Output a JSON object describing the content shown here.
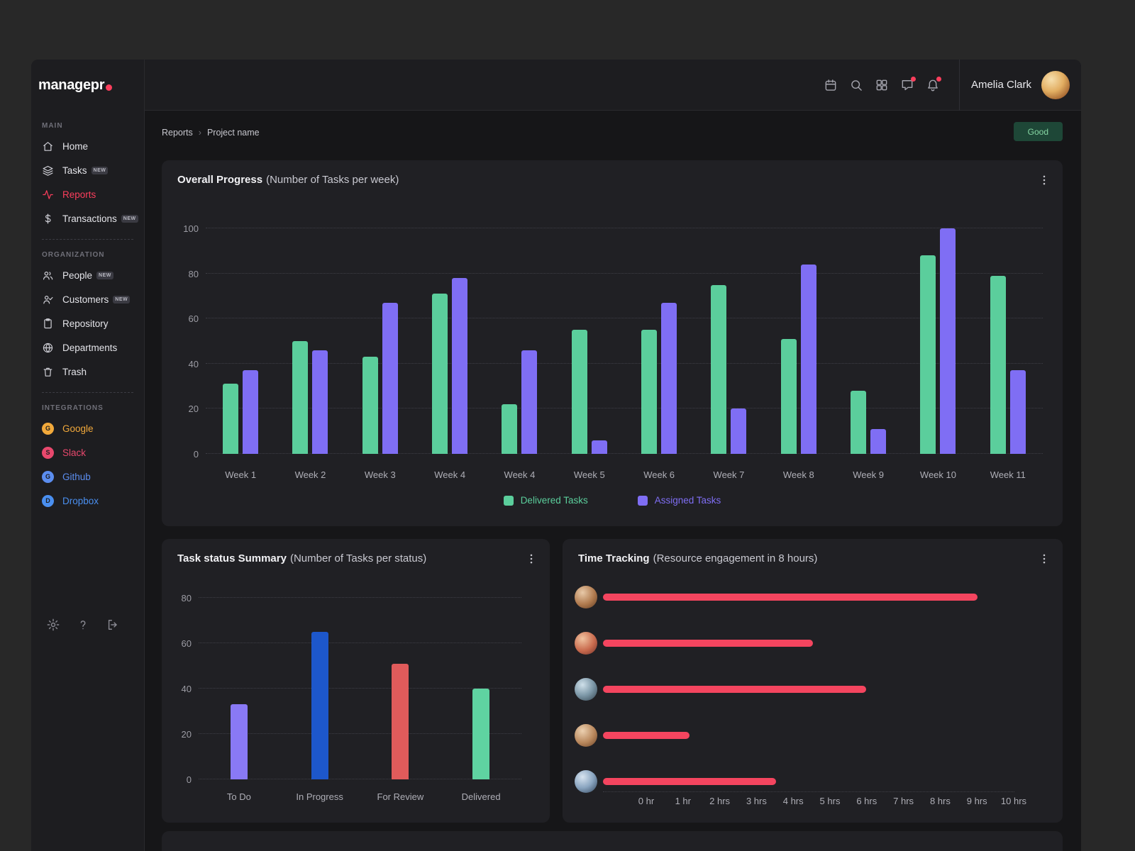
{
  "brand": {
    "logo_text": "managepr",
    "accent": "#FB3E5C"
  },
  "header": {
    "user_name": "Amelia Clark",
    "icons": [
      "calendar-icon",
      "search-icon",
      "grid-icon",
      "chat-icon",
      "bell-icon"
    ],
    "notification_dots_on": [
      "chat-icon",
      "bell-icon"
    ]
  },
  "breadcrumb": {
    "path": [
      "Reports",
      "Project name"
    ],
    "separator": "›"
  },
  "status_button": {
    "label": "Good",
    "bg": "#1E4737",
    "color": "#86D6A3"
  },
  "sidebar": {
    "sections": [
      {
        "title": "MAIN",
        "items": [
          {
            "label": "Home",
            "icon": "home-icon"
          },
          {
            "label": "Tasks",
            "icon": "layers-icon",
            "badge": "NEW"
          },
          {
            "label": "Reports",
            "icon": "activity-icon",
            "active": true
          },
          {
            "label": "Transactions",
            "icon": "dollar-icon",
            "badge": "NEW"
          }
        ]
      },
      {
        "title": "ORGANIZATION",
        "items": [
          {
            "label": "People",
            "icon": "users-icon",
            "badge": "NEW"
          },
          {
            "label": "Customers",
            "icon": "user-check-icon",
            "badge": "NEW"
          },
          {
            "label": "Repository",
            "icon": "clipboard-icon"
          },
          {
            "label": "Departments",
            "icon": "globe-icon"
          },
          {
            "label": "Trash",
            "icon": "trash-icon"
          }
        ]
      },
      {
        "title": "INTEGRATIONS",
        "items": [
          {
            "label": "Google",
            "icon": "google-icon",
            "color": "#F2A93B"
          },
          {
            "label": "Slack",
            "icon": "slack-icon",
            "color": "#E8486D"
          },
          {
            "label": "Github",
            "icon": "github-icon",
            "color": "#5B8DEF"
          },
          {
            "label": "Dropbox",
            "icon": "dropbox-icon",
            "color": "#4A8FF0"
          }
        ]
      }
    ],
    "footer_icons": [
      "gear-icon",
      "help-icon",
      "logout-icon"
    ]
  },
  "chart_data": [
    {
      "type": "bar",
      "title": "Overall Progress",
      "subtitle": "(Number of Tasks per week)",
      "categories": [
        "Week 1",
        "Week 2",
        "Week 3",
        "Week 4",
        "Week 4",
        "Week 5",
        "Week 6",
        "Week 7",
        "Week 8",
        "Week 9",
        "Week 10",
        "Week 11"
      ],
      "series": [
        {
          "name": "Delivered Tasks",
          "color": "#5BCE9C",
          "values": [
            31,
            50,
            43,
            71,
            22,
            55,
            55,
            75,
            51,
            28,
            88,
            79
          ]
        },
        {
          "name": "Assigned Tasks",
          "color": "#7F6EF4",
          "values": [
            37,
            46,
            67,
            78,
            46,
            6,
            67,
            20,
            84,
            11,
            100,
            37
          ]
        }
      ],
      "ylim": [
        0,
        100
      ],
      "yticks": [
        0,
        20,
        40,
        60,
        80,
        100
      ],
      "grid": "dotted-horizontal",
      "legend_position": "bottom"
    },
    {
      "type": "bar",
      "title": "Task status Summary",
      "subtitle": "(Number of Tasks per status)",
      "categories": [
        "To Do",
        "In Progress",
        "For Review",
        "Delivered"
      ],
      "values": [
        33,
        65,
        51,
        40
      ],
      "colors": [
        "#8979F5",
        "#1D57CB",
        "#E05B5B",
        "#5FD3A1"
      ],
      "ylim": [
        0,
        80
      ],
      "yticks": [
        0,
        20,
        40,
        60,
        80
      ],
      "grid": "dotted-horizontal"
    },
    {
      "type": "bar-horizontal",
      "title": "Time Tracking",
      "subtitle": "(Resource engagement in 8 hours)",
      "color": "#F4455F",
      "rows": [
        {
          "avatar": "avatar-1",
          "hours": 9.1
        },
        {
          "avatar": "avatar-2",
          "hours": 5.1
        },
        {
          "avatar": "avatar-3",
          "hours": 6.4
        },
        {
          "avatar": "avatar-4",
          "hours": 2.1
        },
        {
          "avatar": "avatar-5",
          "hours": 4.2
        }
      ],
      "xlim": [
        0,
        10
      ],
      "xticks": [
        "0 hr",
        "1 hr",
        "2 hrs",
        "3 hrs",
        "4 hrs",
        "5 hrs",
        "6 hrs",
        "7 hrs",
        "8 hrs",
        "9 hrs",
        "10 hrs"
      ],
      "grid": "dotted-horizontal"
    }
  ]
}
